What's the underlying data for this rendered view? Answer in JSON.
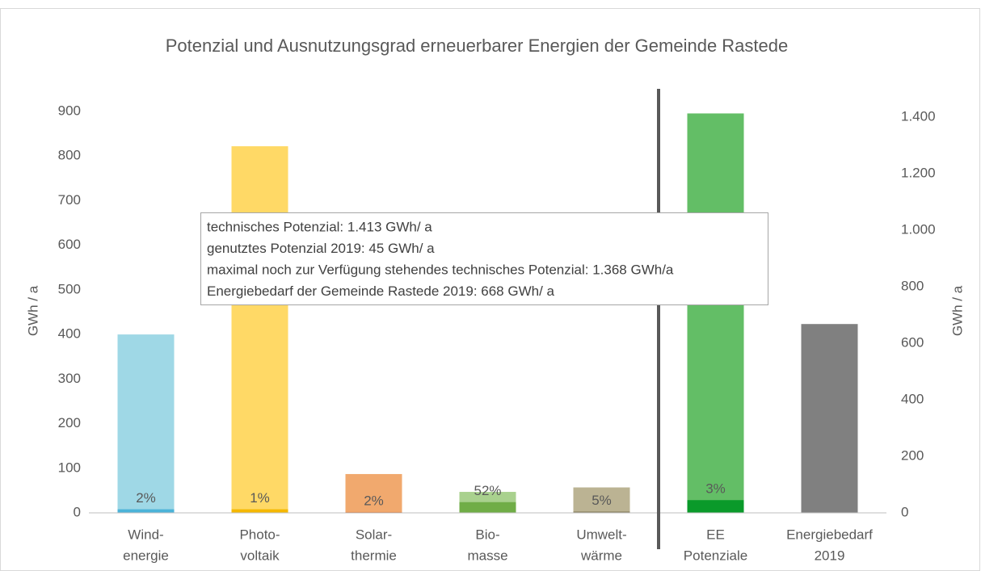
{
  "chart_data": {
    "type": "bar",
    "title": "Potenzial und Ausnutzungsgrad erneuerbarer Energien der Gemeinde Rastede",
    "categories": [
      [
        "Wind-",
        "energie"
      ],
      [
        "Photo-",
        "voltaik"
      ],
      [
        "Solar-",
        "thermie"
      ],
      [
        "Bio-",
        "masse"
      ],
      [
        "Umwelt-",
        "wärme"
      ],
      [
        "EE",
        "Potenziale"
      ],
      [
        "Energiebedarf",
        "2019"
      ]
    ],
    "series": [
      {
        "values": [
          400,
          822,
          87,
          47,
          57,
          null,
          null
        ],
        "colors": [
          "#9fd8e6",
          "#ffd966",
          "#f1a96e",
          "#a9d18e",
          "#bbb393",
          null,
          null
        ]
      },
      {
        "values": [
          8,
          8,
          2,
          24,
          3,
          null,
          null
        ],
        "colors": [
          "#4bb3d8",
          "#f5b800",
          "#e07b39",
          "#70ad47",
          "#8b8262",
          null,
          null
        ]
      },
      {
        "axis": "y2",
        "values": [
          null,
          null,
          null,
          null,
          null,
          1413,
          668
        ],
        "colors": [
          null,
          null,
          null,
          null,
          null,
          "#63be66",
          "#808080"
        ]
      },
      {
        "axis": "y2",
        "values": [
          null,
          null,
          null,
          null,
          null,
          45,
          null
        ],
        "colors": [
          null,
          null,
          null,
          null,
          null,
          "#0a9a2a",
          null
        ]
      }
    ],
    "shares": {
      "values": [
        2,
        1,
        2,
        52,
        5,
        3,
        null
      ],
      "value_labels": [
        "2%",
        "1%",
        "2%",
        "52%",
        "5%",
        "3%",
        null
      ]
    },
    "ylabel": "GWh / a",
    "y2label": "GWh / a",
    "ylim": [
      0,
      900
    ],
    "yticks": [
      0,
      100,
      200,
      300,
      400,
      500,
      600,
      700,
      800,
      900
    ],
    "y2lim": [
      0,
      1420
    ],
    "y2ticks": [
      0,
      200,
      400,
      600,
      800,
      {
        "value": 1000,
        "label": "1.000"
      },
      {
        "value": 1200,
        "label": "1.200"
      },
      {
        "value": 1400,
        "label": "1.400"
      }
    ],
    "annotation": [
      "technisches Potenzial: 1.413 GWh/ a",
      "genutztes Potenzial 2019: 45 GWh/ a",
      "maximal noch zur Verfügung stehendes technisches Potenzial: 1.368 GWh/a",
      "Energiebedarf der Gemeinde Rastede 2019: 668 GWh/ a"
    ]
  }
}
